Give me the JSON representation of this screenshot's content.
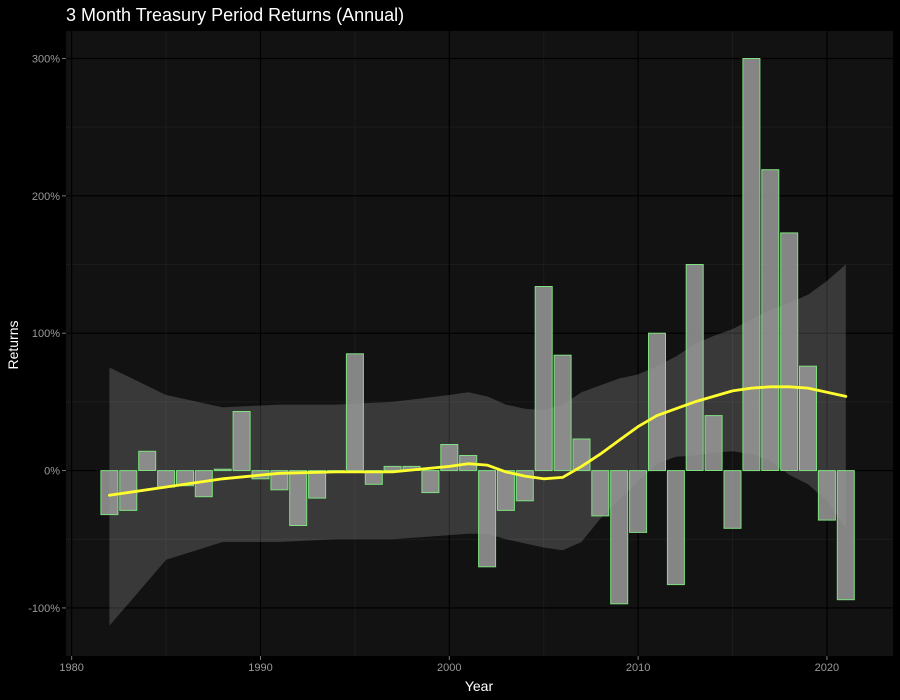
{
  "chart_data": {
    "type": "bar",
    "title": "3 Month Treasury Period Returns (Annual)",
    "xlabel": "Year",
    "ylabel": "Returns",
    "xlim": [
      1979.7,
      2023.5
    ],
    "ylim": [
      -135,
      320
    ],
    "x_ticks": [
      1980,
      1990,
      2000,
      2010,
      2020
    ],
    "x_tick_labels": [
      "1980",
      "1990",
      "2000",
      "2010",
      "2020"
    ],
    "y_ticks": [
      -100,
      0,
      100,
      200,
      300
    ],
    "y_tick_labels": [
      "-100%",
      "0%",
      "100%",
      "200%",
      "300%"
    ],
    "grid": true,
    "colors": {
      "background": "#000000",
      "panel": "#121212",
      "grid_major": "#000000",
      "grid_minor": "#1c1c1c",
      "bar_fill": "#9a9a9a",
      "bar_stroke": "#7ee07e",
      "smooth_line": "#ffff2e",
      "confidence_band": "#ffffff"
    },
    "bars": {
      "x": [
        1982,
        1983,
        1984,
        1985,
        1986,
        1987,
        1988,
        1989,
        1990,
        1991,
        1992,
        1993,
        1994,
        1995,
        1996,
        1997,
        1998,
        1999,
        2000,
        2001,
        2002,
        2003,
        2004,
        2005,
        2006,
        2007,
        2008,
        2009,
        2010,
        2011,
        2012,
        2013,
        2014,
        2015,
        2016,
        2017,
        2018,
        2019,
        2020,
        2021
      ],
      "values": [
        -32,
        -29,
        14,
        -12,
        -11,
        -19,
        1,
        43,
        -6,
        -14,
        -40,
        -20,
        -1,
        85,
        -10,
        3,
        3,
        -16,
        19,
        11,
        -70,
        -29,
        -22,
        134,
        84,
        23,
        -33,
        -97,
        -45,
        100,
        -83,
        150,
        40,
        -42,
        300,
        219,
        173,
        76,
        -36,
        -94
      ]
    },
    "smooth": {
      "x": [
        1982,
        1985,
        1988,
        1991,
        1994,
        1997,
        2000,
        2001,
        2002,
        2003,
        2004,
        2005,
        2006,
        2007,
        2008,
        2009,
        2010,
        2011,
        2012,
        2013,
        2014,
        2015,
        2016,
        2017,
        2018,
        2019,
        2020,
        2021
      ],
      "y": [
        -18,
        -12,
        -6,
        -2,
        -1,
        -1,
        3,
        5,
        4,
        -1,
        -4,
        -6,
        -5,
        3,
        12,
        22,
        32,
        40,
        45,
        50,
        54,
        58,
        60,
        61,
        61,
        60,
        57,
        54
      ],
      "upper": [
        75,
        55,
        46,
        48,
        48,
        50,
        55,
        57,
        54,
        48,
        45,
        44,
        48,
        57,
        62,
        67,
        70,
        76,
        83,
        92,
        98,
        103,
        110,
        117,
        122,
        128,
        138,
        150
      ],
      "lower": [
        -113,
        -65,
        -52,
        -52,
        -50,
        -50,
        -47,
        -46,
        -46,
        -50,
        -53,
        -56,
        -58,
        -52,
        -35,
        -21,
        -8,
        5,
        10,
        11,
        13,
        14,
        12,
        7,
        -3,
        -10,
        -22,
        -42
      ]
    }
  }
}
